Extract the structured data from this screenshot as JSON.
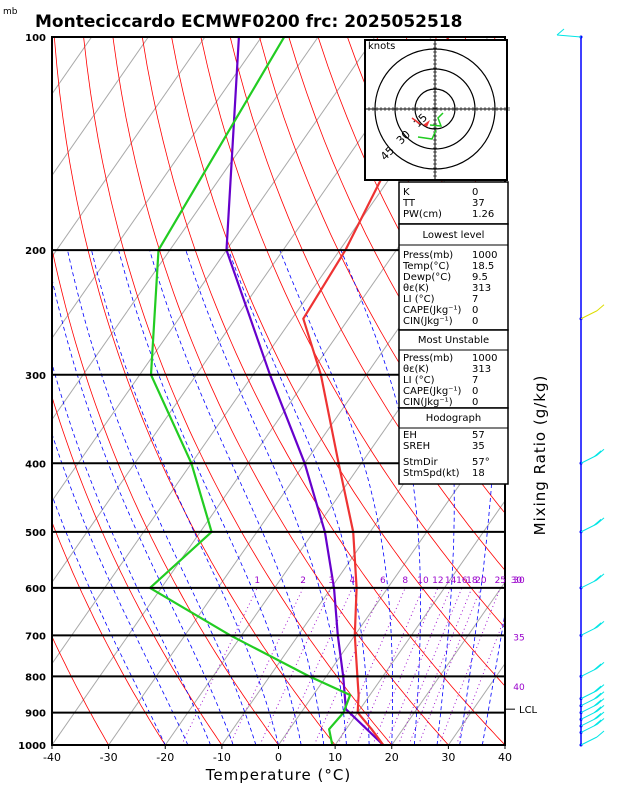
{
  "header": {
    "title": "Monteciccardo ECMWF0200 frc: 2025052518",
    "unit_label": "mb"
  },
  "colors": {
    "frame": "#000000",
    "isotherm": "#a9a9a9",
    "dry_adiabat": "#ff0000",
    "moist_adiabat": "#0000ff",
    "mixing_ratio": "#9900cc",
    "temperature": "#ee3333",
    "dewpoint": "#22cc22",
    "parcel": "#6600cc",
    "wind_barb_upper": "#00e5e5",
    "wind_barb_mid": "#dddd00",
    "wind_axis": "#0000ff"
  },
  "chart_data": {
    "type": "skew-t log-p",
    "xlabel": "Temperature (°C)",
    "ylabel": "Mixing Ratio (g/kg)",
    "x_ticks": [
      -40,
      -30,
      -20,
      -10,
      0,
      10,
      20,
      30,
      40
    ],
    "x_range": [
      -40,
      40
    ],
    "pressure_levels": [
      1000,
      900,
      800,
      700,
      600,
      500,
      400,
      300,
      200,
      100
    ],
    "pressure_range": [
      1000,
      100
    ],
    "mixing_ratio_labels": [
      "1",
      "2",
      "3",
      "4",
      "6",
      "8",
      "10",
      "12",
      "14",
      "16",
      "18",
      "20",
      "25",
      "30"
    ],
    "mixing_ratio_values": [
      1,
      2,
      3,
      4,
      6,
      8,
      10,
      12,
      14,
      16,
      18,
      20,
      25,
      30
    ],
    "isotherm_right_labels": [
      "30",
      "35",
      "40"
    ],
    "isotherm_right_values": [
      30,
      35,
      40
    ],
    "lcl_label": "LCL",
    "lcl_pressure": 890,
    "temperature_profile": [
      {
        "p": 1000,
        "t": 18.5
      },
      {
        "p": 950,
        "t": 14.5
      },
      {
        "p": 900,
        "t": 10.0
      },
      {
        "p": 850,
        "t": 8.0
      },
      {
        "p": 800,
        "t": 5.5
      },
      {
        "p": 700,
        "t": 0.0
      },
      {
        "p": 600,
        "t": -5.5
      },
      {
        "p": 500,
        "t": -13.0
      },
      {
        "p": 400,
        "t": -24.0
      },
      {
        "p": 300,
        "t": -38.0
      },
      {
        "p": 250,
        "t": -48.0
      },
      {
        "p": 200,
        "t": -49.0
      },
      {
        "p": 150,
        "t": -52.0
      },
      {
        "p": 100,
        "t": -57.0
      }
    ],
    "dewpoint_profile": [
      {
        "p": 1000,
        "t": 9.5
      },
      {
        "p": 950,
        "t": 7.0
      },
      {
        "p": 900,
        "t": 7.5
      },
      {
        "p": 850,
        "t": 6.5
      },
      {
        "p": 800,
        "t": -3.0
      },
      {
        "p": 700,
        "t": -22.0
      },
      {
        "p": 600,
        "t": -42.0
      },
      {
        "p": 500,
        "t": -38.0
      },
      {
        "p": 400,
        "t": -50.0
      },
      {
        "p": 300,
        "t": -68.0
      },
      {
        "p": 200,
        "t": -82.0
      },
      {
        "p": 100,
        "t": -86.0
      }
    ],
    "parcel_profile": [
      {
        "p": 1000,
        "t": 18.5
      },
      {
        "p": 890,
        "t": 7.5
      },
      {
        "p": 800,
        "t": 3.0
      },
      {
        "p": 700,
        "t": -3.0
      },
      {
        "p": 600,
        "t": -9.5
      },
      {
        "p": 500,
        "t": -18.0
      },
      {
        "p": 400,
        "t": -30.0
      },
      {
        "p": 300,
        "t": -47.0
      },
      {
        "p": 200,
        "t": -70.0
      },
      {
        "p": 100,
        "t": -94.0
      }
    ],
    "hodograph": {
      "unit": "knots",
      "ring_labels": [
        "15",
        "30",
        "45"
      ],
      "ring_values": [
        15,
        30,
        45
      ]
    },
    "indices": [
      {
        "label": "K",
        "value": "0"
      },
      {
        "label": "TT",
        "value": "37"
      },
      {
        "label": "PW(cm)",
        "value": "1.26"
      }
    ],
    "lowest_level": {
      "title": "Lowest level",
      "rows": [
        {
          "label": "Press(mb)",
          "value": "1000"
        },
        {
          "label": "Temp(°C)",
          "value": "18.5"
        },
        {
          "label": "Dewp(°C)",
          "value": "9.5"
        },
        {
          "label": "θε(K)",
          "value": "313"
        },
        {
          "label": "LI (°C)",
          "value": "7"
        },
        {
          "label": "CAPE(Jkg⁻¹)",
          "value": "0"
        },
        {
          "label": "CIN(Jkg⁻¹)",
          "value": "0"
        }
      ]
    },
    "most_unstable": {
      "title": "Most Unstable",
      "rows": [
        {
          "label": "Press(mb)",
          "value": "1000"
        },
        {
          "label": "θε(K)",
          "value": "313"
        },
        {
          "label": "LI (°C)",
          "value": "7"
        },
        {
          "label": "CAPE(Jkg⁻¹)",
          "value": "0"
        },
        {
          "label": "CIN(Jkg⁻¹)",
          "value": "0"
        }
      ]
    },
    "hodograph_table": {
      "title": "Hodograph",
      "rows": [
        {
          "label": "EH",
          "value": "57"
        },
        {
          "label": "SREH",
          "value": "35"
        },
        {
          "label": "StmDir",
          "value": "57°"
        },
        {
          "label": "StmSpd(kt)",
          "value": "18"
        }
      ]
    }
  }
}
